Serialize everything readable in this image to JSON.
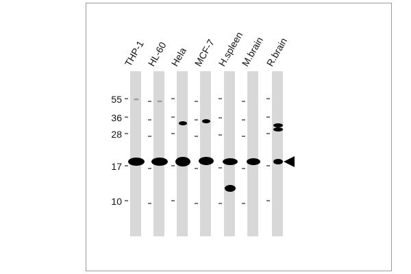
{
  "lanes": [
    "THP-1",
    "HL-60",
    "Hela",
    "MCF-7",
    "H.spleen",
    "M.brain",
    "R.brain"
  ],
  "markers": [
    55,
    36,
    28,
    17,
    10
  ]
}
